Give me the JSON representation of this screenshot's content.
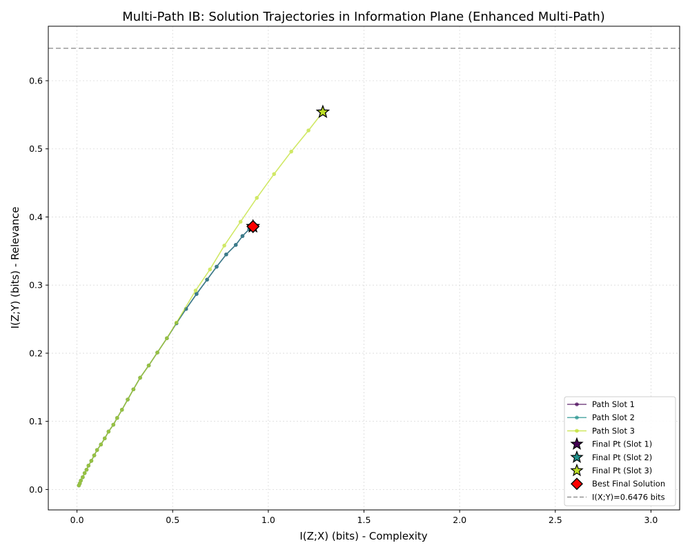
{
  "chart_data": {
    "type": "line",
    "title": "Multi-Path IB: Solution Trajectories in Information Plane (Enhanced Multi-Path)",
    "xlabel": "I(Z;X) (bits) - Complexity",
    "ylabel": "I(Z;Y) (bits) - Relevance",
    "xlim": [
      -0.15,
      3.15
    ],
    "ylim": [
      -0.03,
      0.68
    ],
    "xticks": [
      0.0,
      0.5,
      1.0,
      1.5,
      2.0,
      2.5,
      3.0
    ],
    "xtick_labels": [
      "0.0",
      "0.5",
      "1.0",
      "1.5",
      "2.0",
      "2.5",
      "3.0"
    ],
    "yticks": [
      0.0,
      0.1,
      0.2,
      0.3,
      0.4,
      0.5,
      0.6
    ],
    "ytick_labels": [
      "0.0",
      "0.1",
      "0.2",
      "0.3",
      "0.4",
      "0.5",
      "0.6"
    ],
    "grid": true,
    "legend_position": "lower-right",
    "series": [
      {
        "name": "Path Slot 1",
        "color": "#440154",
        "points": [
          [
            0.01,
            0.006
          ],
          [
            0.015,
            0.009
          ],
          [
            0.02,
            0.013
          ],
          [
            0.03,
            0.018
          ],
          [
            0.04,
            0.024
          ],
          [
            0.05,
            0.029
          ],
          [
            0.06,
            0.035
          ],
          [
            0.075,
            0.042
          ],
          [
            0.09,
            0.05
          ],
          [
            0.105,
            0.058
          ],
          [
            0.125,
            0.066
          ],
          [
            0.145,
            0.075
          ],
          [
            0.165,
            0.085
          ],
          [
            0.19,
            0.095
          ],
          [
            0.21,
            0.105
          ],
          [
            0.235,
            0.117
          ],
          [
            0.265,
            0.132
          ],
          [
            0.295,
            0.147
          ],
          [
            0.33,
            0.164
          ],
          [
            0.375,
            0.182
          ],
          [
            0.42,
            0.201
          ],
          [
            0.47,
            0.222
          ],
          [
            0.52,
            0.244
          ],
          [
            0.57,
            0.265
          ],
          [
            0.625,
            0.287
          ],
          [
            0.68,
            0.308
          ],
          [
            0.73,
            0.327
          ],
          [
            0.78,
            0.345
          ],
          [
            0.83,
            0.359
          ],
          [
            0.865,
            0.372
          ],
          [
            0.9,
            0.382
          ],
          [
            0.92,
            0.386
          ]
        ]
      },
      {
        "name": "Path Slot 2",
        "color": "#21918c",
        "points": [
          [
            0.01,
            0.006
          ],
          [
            0.015,
            0.009
          ],
          [
            0.02,
            0.013
          ],
          [
            0.03,
            0.018
          ],
          [
            0.04,
            0.024
          ],
          [
            0.05,
            0.029
          ],
          [
            0.06,
            0.035
          ],
          [
            0.075,
            0.042
          ],
          [
            0.09,
            0.05
          ],
          [
            0.105,
            0.058
          ],
          [
            0.125,
            0.066
          ],
          [
            0.145,
            0.075
          ],
          [
            0.165,
            0.085
          ],
          [
            0.19,
            0.095
          ],
          [
            0.21,
            0.105
          ],
          [
            0.235,
            0.117
          ],
          [
            0.265,
            0.132
          ],
          [
            0.295,
            0.147
          ],
          [
            0.33,
            0.164
          ],
          [
            0.375,
            0.182
          ],
          [
            0.42,
            0.201
          ],
          [
            0.47,
            0.222
          ],
          [
            0.52,
            0.244
          ],
          [
            0.57,
            0.265
          ],
          [
            0.625,
            0.287
          ],
          [
            0.68,
            0.308
          ],
          [
            0.73,
            0.327
          ],
          [
            0.78,
            0.345
          ],
          [
            0.83,
            0.359
          ],
          [
            0.865,
            0.372
          ],
          [
            0.9,
            0.382
          ],
          [
            0.92,
            0.386
          ]
        ]
      },
      {
        "name": "Path Slot 3",
        "color": "#bddf26",
        "points": [
          [
            0.01,
            0.006
          ],
          [
            0.015,
            0.009
          ],
          [
            0.02,
            0.013
          ],
          [
            0.03,
            0.018
          ],
          [
            0.04,
            0.024
          ],
          [
            0.05,
            0.029
          ],
          [
            0.06,
            0.035
          ],
          [
            0.075,
            0.042
          ],
          [
            0.09,
            0.05
          ],
          [
            0.105,
            0.058
          ],
          [
            0.125,
            0.066
          ],
          [
            0.145,
            0.075
          ],
          [
            0.165,
            0.085
          ],
          [
            0.19,
            0.095
          ],
          [
            0.21,
            0.105
          ],
          [
            0.235,
            0.117
          ],
          [
            0.265,
            0.132
          ],
          [
            0.295,
            0.147
          ],
          [
            0.33,
            0.164
          ],
          [
            0.375,
            0.182
          ],
          [
            0.42,
            0.201
          ],
          [
            0.47,
            0.222
          ],
          [
            0.52,
            0.245
          ],
          [
            0.62,
            0.292
          ],
          [
            0.695,
            0.323
          ],
          [
            0.77,
            0.358
          ],
          [
            0.855,
            0.393
          ],
          [
            0.94,
            0.428
          ],
          [
            1.03,
            0.463
          ],
          [
            1.12,
            0.496
          ],
          [
            1.21,
            0.527
          ],
          [
            1.285,
            0.554
          ]
        ]
      }
    ],
    "final_points": [
      {
        "name": "Final Pt (Slot 1)",
        "x": 0.92,
        "y": 0.386,
        "color": "#440154"
      },
      {
        "name": "Final Pt (Slot 2)",
        "x": 0.92,
        "y": 0.386,
        "color": "#21918c"
      },
      {
        "name": "Final Pt (Slot 3)",
        "x": 1.285,
        "y": 0.554,
        "color": "#bddf26"
      }
    ],
    "best_solution": {
      "name": "Best Final Solution",
      "x": 0.92,
      "y": 0.386,
      "color": "#ff0000"
    },
    "reference_line": {
      "name": "I(X;Y)=0.6476 bits",
      "y": 0.6476,
      "color": "#999999"
    },
    "legend": [
      {
        "label": "Path Slot 1",
        "kind": "line",
        "color": "#440154"
      },
      {
        "label": "Path Slot 2",
        "kind": "line",
        "color": "#21918c"
      },
      {
        "label": "Path Slot 3",
        "kind": "line",
        "color": "#bddf26"
      },
      {
        "label": "Final Pt (Slot 1)",
        "kind": "star",
        "color": "#440154"
      },
      {
        "label": "Final Pt (Slot 2)",
        "kind": "star",
        "color": "#21918c"
      },
      {
        "label": "Final Pt (Slot 3)",
        "kind": "star",
        "color": "#bddf26"
      },
      {
        "label": "Best Final Solution",
        "kind": "diamond",
        "color": "#ff0000"
      },
      {
        "label": "I(X;Y)=0.6476 bits",
        "kind": "dashed",
        "color": "#999999"
      }
    ]
  }
}
